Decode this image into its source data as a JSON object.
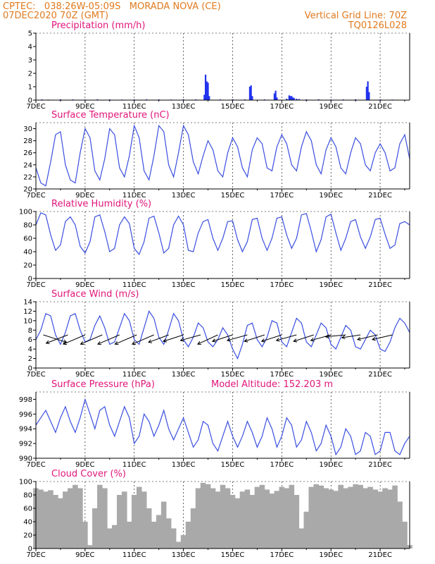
{
  "header": {
    "line1_left": "CPTEC:   038:26W-05:09S   MORADA NOVA (CE)",
    "line2_left": "07DEC2020 70Z (GMT)",
    "line1_right": "Vertical Grid Line: 70Z",
    "line2_right": "TQ0126L028"
  },
  "colors": {
    "header": "#e07a1e",
    "title": "#e0157a",
    "line": "#3a4fe0",
    "bar": "#2233ee",
    "cloud": "#a9a9a9",
    "arrow": "#000000"
  },
  "x_tick_labels": [
    "7DEC",
    "9DEC",
    "11DEC",
    "13DEC",
    "15DEC",
    "17DEC",
    "19DEC",
    "21DEC"
  ],
  "chart_data": [
    {
      "name": "precip",
      "type": "bar",
      "title": "Precipitation (mm/h)",
      "ylim": [
        0,
        5
      ],
      "yticks": [
        0,
        1,
        2,
        3,
        4,
        5
      ],
      "x": [
        0.25,
        0.5,
        1.0,
        1.5,
        2.0,
        2.5,
        3.0,
        3.5,
        4.0,
        4.5,
        5.0,
        5.5,
        6.0,
        6.5,
        6.85,
        6.9,
        6.95,
        7.0,
        7.05,
        7.5,
        8.0,
        8.5,
        8.7,
        8.75,
        8.8,
        9.3,
        9.7,
        9.75,
        9.8,
        10.2,
        10.3,
        10.35,
        10.4,
        10.45,
        10.5,
        10.6,
        10.7,
        11.0,
        11.5,
        12.0,
        12.5,
        13.0,
        13.45,
        13.5,
        13.55,
        14.0,
        14.5
      ],
      "values": [
        0.05,
        0.04,
        0.06,
        0.05,
        0.04,
        0.06,
        0.05,
        0.04,
        0.05,
        0.06,
        0.05,
        0.04,
        0.06,
        0.05,
        0.4,
        1.9,
        1.4,
        1.3,
        0.3,
        0.05,
        0.06,
        0.05,
        1.0,
        1.1,
        0.3,
        0.05,
        0.5,
        0.7,
        0.2,
        0.1,
        0.35,
        0.3,
        0.3,
        0.2,
        0.15,
        0.1,
        0.08,
        0.05,
        0.06,
        0.05,
        0.05,
        0.06,
        1.0,
        1.4,
        0.6,
        0.05,
        0.04
      ]
    },
    {
      "name": "temp",
      "type": "line",
      "title": "Surface Temperature (nC)",
      "ylim": [
        20,
        31
      ],
      "yticks": [
        20,
        22,
        24,
        26,
        28,
        30
      ],
      "x": [
        0.0,
        0.2,
        0.4,
        0.6,
        0.8,
        1.0,
        1.2,
        1.4,
        1.6,
        1.8,
        2.0,
        2.2,
        2.4,
        2.6,
        2.8,
        3.0,
        3.2,
        3.4,
        3.6,
        3.8,
        4.0,
        4.2,
        4.4,
        4.6,
        4.8,
        5.0,
        5.2,
        5.4,
        5.6,
        5.8,
        6.0,
        6.2,
        6.4,
        6.6,
        6.8,
        7.0,
        7.2,
        7.4,
        7.6,
        7.8,
        8.0,
        8.2,
        8.4,
        8.6,
        8.8,
        9.0,
        9.2,
        9.4,
        9.6,
        9.8,
        10.0,
        10.2,
        10.4,
        10.6,
        10.8,
        11.0,
        11.2,
        11.4,
        11.6,
        11.8,
        12.0,
        12.2,
        12.4,
        12.6,
        12.8,
        13.0,
        13.2,
        13.4,
        13.6,
        13.8,
        14.0,
        14.2,
        14.4,
        14.6,
        14.8,
        15.0,
        15.2
      ],
      "values": [
        23.5,
        21.0,
        20.5,
        24.5,
        29.0,
        29.5,
        24.0,
        21.5,
        21.0,
        26.0,
        30.0,
        28.5,
        23.0,
        21.5,
        25.0,
        30.0,
        29.0,
        23.5,
        22.0,
        25.5,
        30.5,
        28.5,
        23.0,
        21.5,
        25.5,
        30.5,
        29.5,
        24.0,
        22.0,
        26.0,
        30.5,
        29.0,
        24.5,
        22.5,
        25.5,
        28.0,
        26.5,
        23.0,
        22.0,
        26.0,
        28.5,
        27.0,
        23.5,
        22.0,
        26.5,
        28.5,
        27.5,
        23.5,
        23.0,
        27.0,
        29.0,
        27.5,
        24.0,
        23.0,
        27.0,
        29.5,
        28.0,
        24.0,
        22.5,
        26.5,
        28.5,
        27.0,
        23.5,
        22.5,
        26.0,
        28.5,
        27.5,
        24.0,
        23.0,
        26.0,
        27.5,
        26.0,
        23.0,
        23.5,
        27.5,
        29.0,
        25.0
      ]
    },
    {
      "name": "rh",
      "type": "line",
      "title": "Relative Humidity (%)",
      "ylim": [
        0,
        100
      ],
      "yticks": [
        0,
        20,
        40,
        60,
        80,
        100
      ],
      "x": [
        0.0,
        0.2,
        0.4,
        0.6,
        0.8,
        1.0,
        1.2,
        1.4,
        1.6,
        1.8,
        2.0,
        2.2,
        2.4,
        2.6,
        2.8,
        3.0,
        3.2,
        3.4,
        3.6,
        3.8,
        4.0,
        4.2,
        4.4,
        4.6,
        4.8,
        5.0,
        5.2,
        5.4,
        5.6,
        5.8,
        6.0,
        6.2,
        6.4,
        6.6,
        6.8,
        7.0,
        7.2,
        7.4,
        7.6,
        7.8,
        8.0,
        8.2,
        8.4,
        8.6,
        8.8,
        9.0,
        9.2,
        9.4,
        9.6,
        9.8,
        10.0,
        10.2,
        10.4,
        10.6,
        10.8,
        11.0,
        11.2,
        11.4,
        11.6,
        11.8,
        12.0,
        12.2,
        12.4,
        12.6,
        12.8,
        13.0,
        13.2,
        13.4,
        13.6,
        13.8,
        14.0,
        14.2,
        14.4,
        14.6,
        14.8,
        15.0,
        15.2
      ],
      "values": [
        80,
        98,
        95,
        65,
        42,
        50,
        85,
        92,
        80,
        48,
        38,
        55,
        92,
        95,
        70,
        40,
        45,
        80,
        92,
        82,
        45,
        36,
        55,
        90,
        93,
        68,
        38,
        45,
        80,
        93,
        80,
        42,
        40,
        68,
        85,
        88,
        60,
        42,
        60,
        85,
        86,
        58,
        40,
        55,
        88,
        90,
        60,
        42,
        60,
        90,
        92,
        65,
        45,
        60,
        95,
        97,
        70,
        40,
        58,
        92,
        96,
        68,
        42,
        60,
        85,
        88,
        62,
        45,
        62,
        88,
        90,
        66,
        45,
        50,
        82,
        85,
        80
      ]
    },
    {
      "name": "wind",
      "type": "line",
      "title": "Surface Wind (m/s)",
      "ylim": [
        0,
        14
      ],
      "yticks": [
        0,
        2,
        4,
        6,
        8,
        10,
        12,
        14
      ],
      "x": [
        0.0,
        0.2,
        0.4,
        0.6,
        0.8,
        1.0,
        1.2,
        1.4,
        1.6,
        1.8,
        2.0,
        2.2,
        2.4,
        2.6,
        2.8,
        3.0,
        3.2,
        3.4,
        3.6,
        3.8,
        4.0,
        4.2,
        4.4,
        4.6,
        4.8,
        5.0,
        5.2,
        5.4,
        5.6,
        5.8,
        6.0,
        6.2,
        6.4,
        6.6,
        6.8,
        7.0,
        7.2,
        7.4,
        7.6,
        7.8,
        8.0,
        8.2,
        8.4,
        8.6,
        8.8,
        9.0,
        9.2,
        9.4,
        9.6,
        9.8,
        10.0,
        10.2,
        10.4,
        10.6,
        10.8,
        11.0,
        11.2,
        11.4,
        11.6,
        11.8,
        12.0,
        12.2,
        12.4,
        12.6,
        12.8,
        13.0,
        13.2,
        13.4,
        13.6,
        13.8,
        14.0,
        14.2,
        14.4,
        14.6,
        14.8,
        15.0,
        15.2
      ],
      "values": [
        6.0,
        8.0,
        11.5,
        11.0,
        7.0,
        5.0,
        7.5,
        11.0,
        11.5,
        8.0,
        5.5,
        6.0,
        9.0,
        11.0,
        8.5,
        5.0,
        5.5,
        8.5,
        11.5,
        10.0,
        6.0,
        5.0,
        8.5,
        12.0,
        10.5,
        6.5,
        5.0,
        8.0,
        11.5,
        10.0,
        6.0,
        4.5,
        6.5,
        9.5,
        8.5,
        5.5,
        4.5,
        6.0,
        8.5,
        7.0,
        4.0,
        2.0,
        5.0,
        9.0,
        9.5,
        6.0,
        4.5,
        6.5,
        10.0,
        9.5,
        5.5,
        4.5,
        7.5,
        10.5,
        9.5,
        5.5,
        4.5,
        7.0,
        9.5,
        8.5,
        5.0,
        4.0,
        6.5,
        9.0,
        8.0,
        4.5,
        4.0,
        6.0,
        8.0,
        7.0,
        4.0,
        3.5,
        5.5,
        8.5,
        10.5,
        9.5,
        7.5
      ],
      "arrows": [
        {
          "x": 0.3,
          "u": 1.5,
          "v": -0.8
        },
        {
          "x": 1.3,
          "u": -1.4,
          "v": -0.9
        },
        {
          "x": 2.0,
          "u": -1.4,
          "v": -1.0
        },
        {
          "x": 2.7,
          "u": -1.4,
          "v": -1.0
        },
        {
          "x": 3.4,
          "u": -1.4,
          "v": -1.0
        },
        {
          "x": 4.1,
          "u": -1.4,
          "v": -1.0
        },
        {
          "x": 4.8,
          "u": -1.4,
          "v": -1.0
        },
        {
          "x": 5.4,
          "u": -1.3,
          "v": -0.8
        },
        {
          "x": 6.0,
          "u": -1.3,
          "v": -0.7
        },
        {
          "x": 6.7,
          "u": -1.3,
          "v": -0.6
        },
        {
          "x": 7.4,
          "u": -1.3,
          "v": -1.0
        },
        {
          "x": 8.0,
          "u": -1.3,
          "v": -0.7
        },
        {
          "x": 8.6,
          "u": -1.3,
          "v": -0.6
        },
        {
          "x": 9.3,
          "u": -1.3,
          "v": -0.7
        },
        {
          "x": 10.0,
          "u": -1.3,
          "v": -0.7
        },
        {
          "x": 10.6,
          "u": -1.3,
          "v": -0.6
        },
        {
          "x": 11.3,
          "u": -1.3,
          "v": -0.7
        },
        {
          "x": 12.0,
          "u": -1.3,
          "v": -0.6
        },
        {
          "x": 12.6,
          "u": -1.3,
          "v": -0.2
        },
        {
          "x": 13.2,
          "u": -1.2,
          "v": -0.3
        },
        {
          "x": 13.9,
          "u": -1.3,
          "v": -0.5
        },
        {
          "x": 14.5,
          "u": -1.3,
          "v": -0.5
        }
      ]
    },
    {
      "name": "pres",
      "type": "line",
      "title": "Surface Pressure (hPa)",
      "annotation": "Model Altitude: 152.203 m",
      "ylim": [
        990,
        999
      ],
      "yticks": [
        990,
        992,
        994,
        996,
        998
      ],
      "x": [
        0.0,
        0.2,
        0.4,
        0.6,
        0.8,
        1.0,
        1.2,
        1.4,
        1.6,
        1.8,
        2.0,
        2.2,
        2.4,
        2.6,
        2.8,
        3.0,
        3.2,
        3.4,
        3.6,
        3.8,
        4.0,
        4.2,
        4.4,
        4.6,
        4.8,
        5.0,
        5.2,
        5.4,
        5.6,
        5.8,
        6.0,
        6.2,
        6.4,
        6.6,
        6.8,
        7.0,
        7.2,
        7.4,
        7.6,
        7.8,
        8.0,
        8.2,
        8.4,
        8.6,
        8.8,
        9.0,
        9.2,
        9.4,
        9.6,
        9.8,
        10.0,
        10.2,
        10.4,
        10.6,
        10.8,
        11.0,
        11.2,
        11.4,
        11.6,
        11.8,
        12.0,
        12.2,
        12.4,
        12.6,
        12.8,
        13.0,
        13.2,
        13.4,
        13.6,
        13.8,
        14.0,
        14.2,
        14.4,
        14.6,
        14.8,
        15.0,
        15.2
      ],
      "values": [
        994.5,
        995.5,
        996.5,
        995.0,
        993.5,
        995.5,
        997.0,
        995.0,
        993.5,
        995.5,
        998.0,
        996.0,
        994.0,
        996.5,
        997.0,
        994.5,
        993.0,
        995.0,
        997.0,
        995.5,
        992.0,
        993.0,
        996.0,
        995.0,
        993.0,
        994.5,
        996.5,
        994.0,
        992.5,
        994.0,
        995.5,
        993.5,
        991.5,
        992.5,
        995.0,
        994.5,
        992.0,
        991.0,
        993.0,
        995.0,
        993.0,
        991.5,
        993.0,
        995.0,
        993.5,
        991.5,
        993.0,
        995.5,
        994.0,
        991.5,
        993.0,
        995.5,
        994.5,
        991.5,
        992.5,
        995.0,
        993.5,
        991.0,
        992.0,
        994.5,
        993.0,
        990.5,
        991.5,
        994.0,
        993.0,
        990.5,
        991.0,
        993.5,
        993.0,
        990.5,
        991.0,
        993.5,
        993.5,
        991.0,
        990.5,
        992.0,
        993.0
      ]
    },
    {
      "name": "cloud",
      "type": "area",
      "title": "Cloud Cover (%)",
      "ylim": [
        0,
        100
      ],
      "yticks": [
        0,
        20,
        40,
        60,
        80,
        100
      ],
      "x": [
        0.0,
        0.2,
        0.4,
        0.6,
        0.8,
        1.0,
        1.2,
        1.4,
        1.6,
        1.8,
        2.0,
        2.2,
        2.4,
        2.6,
        2.8,
        3.0,
        3.2,
        3.4,
        3.6,
        3.8,
        4.0,
        4.2,
        4.4,
        4.6,
        4.8,
        5.0,
        5.2,
        5.4,
        5.6,
        5.8,
        6.0,
        6.2,
        6.4,
        6.6,
        6.8,
        7.0,
        7.2,
        7.4,
        7.6,
        7.8,
        8.0,
        8.2,
        8.4,
        8.6,
        8.8,
        9.0,
        9.2,
        9.4,
        9.6,
        9.8,
        10.0,
        10.2,
        10.4,
        10.6,
        10.8,
        11.0,
        11.2,
        11.4,
        11.6,
        11.8,
        12.0,
        12.2,
        12.4,
        12.6,
        12.8,
        13.0,
        13.2,
        13.4,
        13.6,
        13.8,
        14.0,
        14.2,
        14.4,
        14.6,
        14.8,
        15.0,
        15.2
      ],
      "values": [
        90,
        88,
        85,
        87,
        80,
        75,
        85,
        90,
        95,
        90,
        40,
        5,
        60,
        95,
        90,
        30,
        35,
        80,
        85,
        40,
        80,
        92,
        85,
        60,
        40,
        50,
        70,
        45,
        30,
        10,
        20,
        40,
        60,
        90,
        98,
        96,
        90,
        85,
        95,
        90,
        80,
        75,
        85,
        88,
        80,
        92,
        95,
        88,
        82,
        86,
        92,
        90,
        95,
        80,
        30,
        55,
        92,
        96,
        94,
        90,
        88,
        86,
        95,
        90,
        92,
        96,
        95,
        90,
        92,
        88,
        85,
        90,
        88,
        94,
        70,
        40,
        5
      ]
    }
  ]
}
